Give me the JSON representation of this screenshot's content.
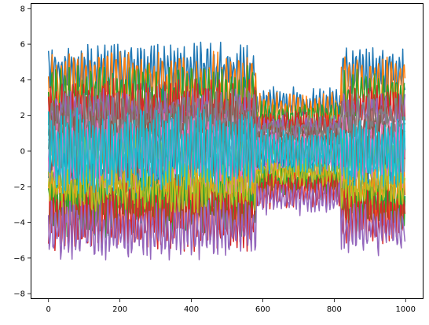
{
  "chart_data": {
    "type": "line",
    "title": "",
    "xlabel": "",
    "ylabel": "",
    "xlim": [
      -50,
      1050
    ],
    "ylim": [
      -8.3,
      8.3
    ],
    "x_ticks": [
      0,
      200,
      400,
      600,
      800,
      1000
    ],
    "y_ticks": [
      -8,
      -6,
      -4,
      -2,
      0,
      2,
      4,
      6,
      8
    ],
    "x_tick_labels": [
      "0",
      "200",
      "400",
      "600",
      "800",
      "1000"
    ],
    "y_tick_labels": [
      "−8",
      "−6",
      "−4",
      "−2",
      "0",
      "2",
      "4",
      "6",
      "8"
    ],
    "grid": false,
    "legend": "none",
    "n_points": 1000,
    "colors": [
      "#1f77b4",
      "#ff7f0e",
      "#2ca02c",
      "#d62728",
      "#9467bd",
      "#8c564b",
      "#e377c2",
      "#7f7f7f",
      "#bcbd22",
      "#17becf"
    ],
    "series": [
      {
        "mean": 4.4,
        "amplitude": 1.1
      },
      {
        "mean": 3.6,
        "amplitude": 1.4
      },
      {
        "mean": 3.0,
        "amplitude": 1.2
      },
      {
        "mean": 2.4,
        "amplitude": 1.0
      },
      {
        "mean": 1.8,
        "amplitude": 1.1
      },
      {
        "mean": 1.2,
        "amplitude": 0.9
      },
      {
        "mean": 0.6,
        "amplitude": 1.0
      },
      {
        "mean": 0.0,
        "amplitude": 1.3
      },
      {
        "mean": -0.6,
        "amplitude": 1.0
      },
      {
        "mean": -1.2,
        "amplitude": 0.9
      },
      {
        "mean": -1.8,
        "amplitude": 1.1
      },
      {
        "mean": -2.4,
        "amplitude": 1.0
      },
      {
        "mean": -3.0,
        "amplitude": 1.2
      },
      {
        "mean": -3.6,
        "amplitude": 1.4
      },
      {
        "mean": -4.4,
        "amplitude": 1.1
      },
      {
        "mean": 0.3,
        "amplitude": 1.6
      },
      {
        "mean": -0.3,
        "amplitude": 1.5
      },
      {
        "mean": 2.0,
        "amplitude": 0.8
      },
      {
        "mean": -2.0,
        "amplitude": 0.8
      },
      {
        "mean": 0.0,
        "amplitude": 1.8
      }
    ]
  }
}
